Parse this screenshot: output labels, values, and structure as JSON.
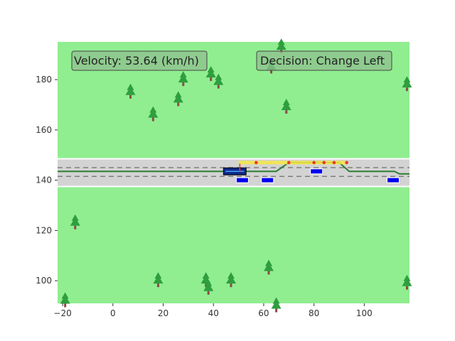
{
  "hud": {
    "velocity_label": "Velocity: 53.64 (km/h)",
    "decision_label": "Decision: Change Left"
  },
  "colors": {
    "grass": "#90ee90",
    "road": "#d3d3d3",
    "road_edge": "#ffffff",
    "lane_dash": "#777777",
    "ego_car": "#0b2a8a",
    "other_car": "#0000ee",
    "planned_path": "#2e7d32",
    "tree_canopy": "#2e9e3e",
    "tree_trunk": "#8b4a4a",
    "prediction_band": "#f5e642",
    "prediction_point": "#e53935"
  },
  "chart_data": {
    "type": "scatter",
    "title": "",
    "xlabel": "",
    "ylabel": "",
    "xlim": [
      -22,
      118
    ],
    "ylim": [
      91,
      195
    ],
    "x_ticks": [
      -20,
      0,
      20,
      40,
      60,
      80,
      100
    ],
    "y_ticks": [
      100,
      120,
      140,
      160,
      180
    ],
    "road": {
      "y_bottom": 137.5,
      "y_top": 148.5,
      "lane_lines": [
        141.5,
        145
      ]
    },
    "ego_vehicle": {
      "x": 48.5,
      "y": 143.5,
      "length": 9,
      "width": 2.8
    },
    "other_vehicles": [
      {
        "x": 51.5,
        "y": 140
      },
      {
        "x": 61.5,
        "y": 140
      },
      {
        "x": 81,
        "y": 143.5
      },
      {
        "x": 111.5,
        "y": 140
      }
    ],
    "planned_path": [
      [
        -22,
        143.5
      ],
      [
        45,
        143.5
      ],
      [
        65,
        143.5
      ],
      [
        70,
        147
      ],
      [
        90,
        147
      ],
      [
        94,
        143.5
      ],
      [
        112,
        143.5
      ],
      [
        114,
        142.5
      ],
      [
        118,
        142.5
      ]
    ],
    "prediction": {
      "band_x": [
        50,
        93
      ],
      "band_y": 147,
      "points": [
        [
          57,
          147
        ],
        [
          70,
          147
        ],
        [
          80,
          147
        ],
        [
          84,
          147
        ],
        [
          88,
          147
        ],
        [
          93,
          147
        ]
      ]
    },
    "trees": [
      [
        67,
        193
      ],
      [
        63,
        185
      ],
      [
        28,
        180
      ],
      [
        39,
        182
      ],
      [
        42,
        179
      ],
      [
        7,
        175
      ],
      [
        26,
        172
      ],
      [
        16,
        166
      ],
      [
        69,
        169
      ],
      [
        117,
        178
      ],
      [
        -15,
        123
      ],
      [
        18,
        100
      ],
      [
        37,
        100
      ],
      [
        38,
        97
      ],
      [
        47,
        100
      ],
      [
        62,
        105
      ],
      [
        -19,
        92
      ],
      [
        65,
        90
      ],
      [
        117,
        99
      ]
    ]
  }
}
